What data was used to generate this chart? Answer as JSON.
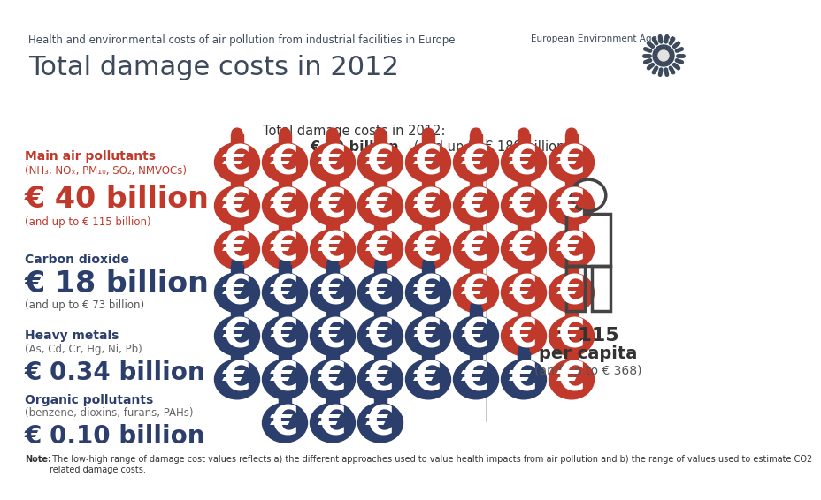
{
  "title_small": "Health and environmental costs of air pollution from industrial facilities in Europe",
  "title_large": "Total damage costs in 2012",
  "header_bg": "#e2e2e2",
  "body_bg": "#ffffff",
  "total_line1": "Total damage costs in 2012:",
  "total_bold": "€ 59 billion",
  "total_rest": " (and up to € 189 billion)",
  "pollutants": [
    {
      "label_bold": "Main air pollutants",
      "label_sub": "(NH₃, NOₓ, PM₁₀, SO₂, NMVOCs)",
      "value_bold": "€ 40 billion",
      "value_sub": "(and up to € 115 billion)",
      "label_color": "#c0392b",
      "value_color": "#c0392b",
      "sub_color": "#c0392b"
    },
    {
      "label_bold": "Carbon dioxide",
      "label_sub": "",
      "value_bold": "€ 18 billion",
      "value_sub": "(and up to € 73 billion)",
      "label_color": "#2c3e6b",
      "value_color": "#2c3e6b",
      "sub_color": "#555555"
    },
    {
      "label_bold": "Heavy metals",
      "label_sub": "(As, Cd, Cr, Hg, Ni, Pb)",
      "value_bold": "€ 0.34 billion",
      "value_sub": "",
      "label_color": "#2c3e6b",
      "value_color": "#2c3e6b",
      "sub_color": "#555555"
    },
    {
      "label_bold": "Organic pollutants",
      "label_sub": "(benzene, dioxins, furans, PAHs)",
      "value_bold": "€ 0.10 billion",
      "value_sub": "",
      "label_color": "#2c3e6b",
      "value_color": "#2c3e6b",
      "sub_color": "#555555"
    }
  ],
  "per_capita_value": "€ 115",
  "per_capita_label": "per capita",
  "per_capita_sub": "(and up to € 368)",
  "note_bold": "Note:",
  "note_rest": " The low-high range of damage cost values reflects a) the different approaches used to value health impacts from air pollution and b) the range of values used to estimate CO2\nrelated damage costs.",
  "red_color": "#c0392b",
  "blue_color": "#2c3e6b",
  "text_dark": "#3d4a5c",
  "eea_color": "#3d4a5c",
  "grid_colors": [
    [
      "red",
      "red",
      "red",
      "red",
      "red",
      "red",
      "red",
      "red"
    ],
    [
      "red",
      "red",
      "red",
      "red",
      "red",
      "red",
      "red",
      "red"
    ],
    [
      "red",
      "red",
      "red",
      "red",
      "red",
      "red",
      "red",
      "red"
    ],
    [
      "blue",
      "blue",
      "blue",
      "blue",
      "blue",
      "red",
      "red",
      "red"
    ],
    [
      "blue",
      "blue",
      "blue",
      "blue",
      "blue",
      "blue",
      "red",
      "red"
    ],
    [
      "blue",
      "blue",
      "blue",
      "blue",
      "blue",
      "blue",
      "blue",
      "red"
    ],
    [
      "none",
      "blue",
      "blue",
      "blue",
      "none",
      "none",
      "none",
      "none"
    ]
  ]
}
